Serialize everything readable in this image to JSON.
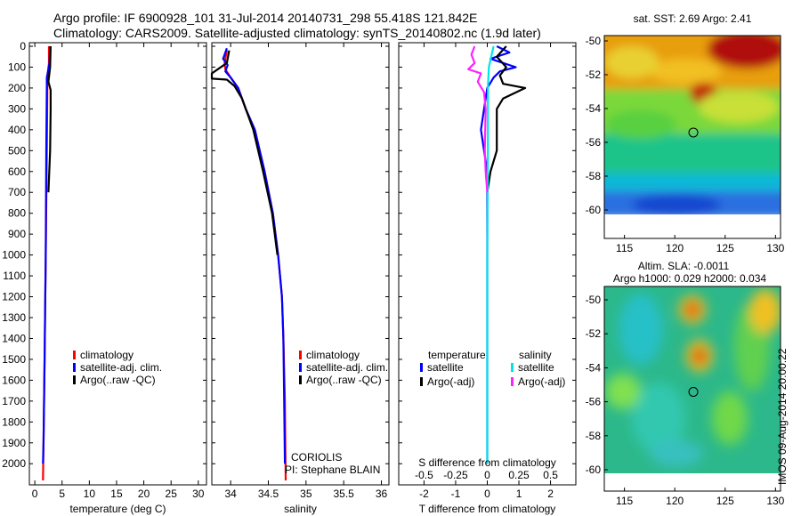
{
  "title_line1": "Argo profile: IF 6900928_101 31-Jul-2014 20140731_298 55.418S 121.842E",
  "title_line2": "Climatology: CARS2009. Satellite-adjusted climatology: synTS_20140802.nc (1.9d later)",
  "stamp": "IMOS 09-Aug-2014 20:00:22",
  "colors": {
    "climatology": "#ff0000",
    "satellite": "#0000ff",
    "argo": "#000000",
    "sal_satellite": "#00e5e5",
    "sal_argo": "#ff22ff"
  },
  "chart_data": [
    {
      "id": "temp",
      "type": "line",
      "xlabel": "temperature (deg C)",
      "ylabel": "",
      "xlim": [
        -1,
        31.5
      ],
      "ylim": [
        2080,
        0
      ],
      "xticks": [
        "0",
        "5",
        "10",
        "15",
        "20",
        "25",
        "30"
      ],
      "yticks": [
        "0",
        "100",
        "200",
        "300",
        "400",
        "500",
        "600",
        "700",
        "800",
        "900",
        "1000",
        "1100",
        "1200",
        "1300",
        "1400",
        "1500",
        "1600",
        "1700",
        "1800",
        "1900",
        "2000"
      ],
      "legend": [
        "climatology",
        "satellite-adj. clim.",
        "Argo(..raw -QC)"
      ],
      "series": [
        {
          "name": "climatology",
          "color": "#ff0000",
          "points": [
            [
              2.6,
              0
            ],
            [
              2.6,
              80
            ],
            [
              2.3,
              150
            ],
            [
              2.3,
              200
            ],
            [
              2.2,
              500
            ],
            [
              2.0,
              1000
            ],
            [
              1.8,
              1500
            ],
            [
              1.6,
              1900
            ],
            [
              1.5,
              2080
            ]
          ]
        },
        {
          "name": "satellite-adj. clim.",
          "color": "#0000ff",
          "points": [
            [
              2.8,
              0
            ],
            [
              2.7,
              80
            ],
            [
              2.2,
              150
            ],
            [
              2.2,
              200
            ],
            [
              2.1,
              500
            ],
            [
              2.0,
              1000
            ],
            [
              1.8,
              1500
            ],
            [
              1.6,
              1900
            ],
            [
              1.5,
              2000
            ]
          ]
        },
        {
          "name": "Argo(..raw -QC)",
          "color": "#000000",
          "points": [
            [
              2.9,
              0
            ],
            [
              2.8,
              100
            ],
            [
              2.5,
              170
            ],
            [
              2.9,
              210
            ],
            [
              2.9,
              300
            ],
            [
              2.8,
              500
            ],
            [
              2.5,
              700
            ]
          ]
        }
      ]
    },
    {
      "id": "sal",
      "type": "line",
      "xlabel": "salinity",
      "ylabel": "",
      "xlim": [
        33.75,
        36.1
      ],
      "ylim": [
        2080,
        0
      ],
      "xticks": [
        "34",
        "34.5",
        "35",
        "35.5",
        "36"
      ],
      "legend": [
        "climatology",
        "satellite-adj. clim.",
        "Argo(..raw -QC)"
      ],
      "annotation": [
        "CORIOLIS",
        "PI: Stephane BLAIN"
      ],
      "series": [
        {
          "name": "climatology",
          "color": "#ff0000",
          "points": [
            [
              33.95,
              20
            ],
            [
              33.92,
              80
            ],
            [
              33.93,
              110
            ],
            [
              34.0,
              150
            ],
            [
              34.1,
              200
            ],
            [
              34.2,
              300
            ],
            [
              34.32,
              400
            ],
            [
              34.45,
              600
            ],
            [
              34.56,
              800
            ],
            [
              34.63,
              1000
            ],
            [
              34.68,
              1200
            ],
            [
              34.7,
              1400
            ],
            [
              34.72,
              1700
            ],
            [
              34.73,
              2080
            ]
          ]
        },
        {
          "name": "satellite-adj. clim.",
          "color": "#0000ff",
          "points": [
            [
              33.95,
              10
            ],
            [
              33.9,
              60
            ],
            [
              33.96,
              90
            ],
            [
              33.93,
              120
            ],
            [
              34.0,
              150
            ],
            [
              34.1,
              200
            ],
            [
              34.2,
              300
            ],
            [
              34.32,
              400
            ],
            [
              34.45,
              600
            ],
            [
              34.56,
              800
            ],
            [
              34.63,
              1000
            ],
            [
              34.68,
              1200
            ],
            [
              34.7,
              1400
            ],
            [
              34.71,
              1700
            ],
            [
              34.72,
              2000
            ]
          ]
        },
        {
          "name": "Argo(..raw -QC)",
          "color": "#000000",
          "points": [
            [
              33.98,
              20
            ],
            [
              33.95,
              80
            ],
            [
              33.75,
              130
            ],
            [
              33.75,
              155
            ],
            [
              33.95,
              160
            ],
            [
              34.05,
              190
            ],
            [
              34.15,
              250
            ],
            [
              34.3,
              400
            ],
            [
              34.43,
              600
            ],
            [
              34.55,
              800
            ],
            [
              34.62,
              1000
            ]
          ]
        }
      ]
    },
    {
      "id": "diff",
      "type": "line",
      "xlabel": "T difference from climatology",
      "xlabel_top": "S difference from climatology",
      "ylabel": "",
      "xlim": [
        -2.8,
        2.8
      ],
      "ylim": [
        2080,
        0
      ],
      "xticks": [
        "-2",
        "-1",
        "0",
        "1",
        "2"
      ],
      "xticks_top": [
        "-0.5",
        "-0.25",
        "0",
        "0.25",
        "0.5"
      ],
      "legend_title_left": "temperature",
      "legend_title_right": "salinity",
      "legend_left": [
        "satellite",
        "Argo(-adj)"
      ],
      "legend_right": [
        "satellite",
        "Argo(-adj)"
      ],
      "series": [
        {
          "name": "T satellite",
          "color": "#0000ff",
          "points": [
            [
              0.3,
              0
            ],
            [
              0.7,
              30
            ],
            [
              0.1,
              60
            ],
            [
              0.5,
              80
            ],
            [
              0.9,
              100
            ],
            [
              0.4,
              120
            ],
            [
              0.2,
              150
            ],
            [
              0,
              200
            ],
            [
              -0.1,
              300
            ],
            [
              -0.2,
              400
            ],
            [
              -0.1,
              500
            ],
            [
              0,
              600
            ],
            [
              0,
              1000
            ],
            [
              0,
              2000
            ]
          ]
        },
        {
          "name": "T Argo(-adj)",
          "color": "#000000",
          "points": [
            [
              0.6,
              0
            ],
            [
              0.3,
              50
            ],
            [
              0.6,
              100
            ],
            [
              0.4,
              140
            ],
            [
              0.5,
              180
            ],
            [
              1.2,
              200
            ],
            [
              0.5,
              250
            ],
            [
              0.3,
              300
            ],
            [
              0.3,
              500
            ],
            [
              0.1,
              600
            ],
            [
              0,
              700
            ]
          ]
        },
        {
          "name": "S satellite",
          "color": "#00e5e5",
          "points": [
            [
              0.2,
              0
            ],
            [
              0.05,
              100
            ],
            [
              0.02,
              200
            ],
            [
              0.02,
              500
            ],
            [
              0,
              1000
            ],
            [
              0,
              2000
            ]
          ]
        },
        {
          "name": "S Argo(-adj)",
          "color": "#ff22ff",
          "points": [
            [
              -0.4,
              0
            ],
            [
              -0.5,
              40
            ],
            [
              -0.4,
              80
            ],
            [
              -0.6,
              110
            ],
            [
              -0.2,
              130
            ],
            [
              -0.3,
              170
            ],
            [
              -0.1,
              220
            ],
            [
              -0.05,
              300
            ],
            [
              -0.08,
              500
            ],
            [
              -0.05,
              600
            ],
            [
              0,
              700
            ]
          ]
        }
      ]
    },
    {
      "id": "sst",
      "type": "heatmap",
      "title": "sat. SST: 2.69 Argo: 2.41",
      "xlim": [
        113,
        130.5
      ],
      "ylim": [
        -60,
        -49.5
      ],
      "xticks": [
        "115",
        "120",
        "125",
        "130"
      ],
      "yticks": [
        "-50",
        "-52",
        "-54",
        "-56",
        "-58",
        "-60"
      ],
      "marker": [
        121.842,
        -55.418
      ]
    },
    {
      "id": "sla",
      "type": "heatmap",
      "title": "Altim. SLA: -0.0011",
      "subtitle": "Argo h1000: 0.029 h2000: 0.034",
      "xlim": [
        113,
        130.5
      ],
      "ylim": [
        -61,
        -49.5
      ],
      "xticks": [
        "115",
        "120",
        "125",
        "130"
      ],
      "yticks": [
        "-50",
        "-52",
        "-54",
        "-56",
        "-58",
        "-60"
      ],
      "marker": [
        121.842,
        -55.418
      ]
    }
  ]
}
